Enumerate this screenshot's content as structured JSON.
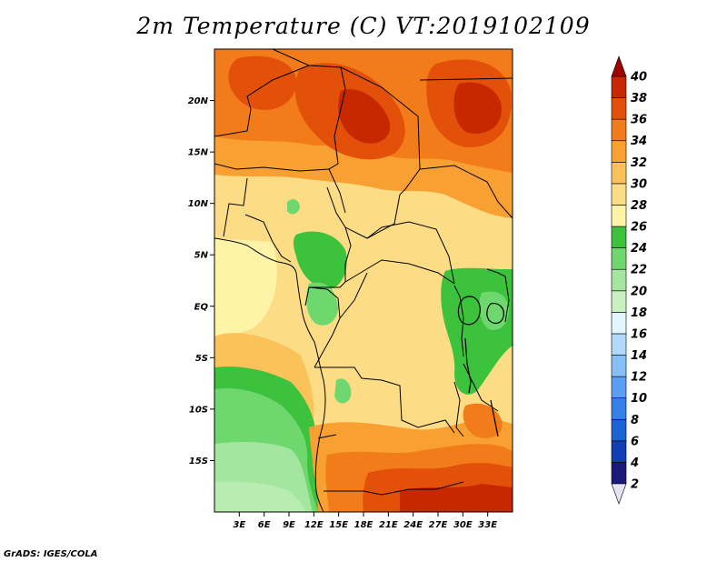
{
  "title": "2m Temperature (C) VT:2019102109",
  "credit": "GrADS: IGES/COLA",
  "map": {
    "lon_range": [
      0,
      36
    ],
    "lat_range": [
      -20,
      25
    ],
    "lat_ticks": [
      {
        "value": 20,
        "label": "20N"
      },
      {
        "value": 15,
        "label": "15N"
      },
      {
        "value": 10,
        "label": "10N"
      },
      {
        "value": 5,
        "label": "5N"
      },
      {
        "value": 0,
        "label": "EQ"
      },
      {
        "value": -5,
        "label": "5S"
      },
      {
        "value": -10,
        "label": "10S"
      },
      {
        "value": -15,
        "label": "15S"
      }
    ],
    "lon_ticks": [
      {
        "value": 3,
        "label": "3E"
      },
      {
        "value": 6,
        "label": "6E"
      },
      {
        "value": 9,
        "label": "9E"
      },
      {
        "value": 12,
        "label": "12E"
      },
      {
        "value": 15,
        "label": "15E"
      },
      {
        "value": 18,
        "label": "18E"
      },
      {
        "value": 21,
        "label": "21E"
      },
      {
        "value": 24,
        "label": "24E"
      },
      {
        "value": 27,
        "label": "27E"
      },
      {
        "value": 30,
        "label": "30E"
      },
      {
        "value": 33,
        "label": "33E"
      }
    ]
  },
  "colorbar": {
    "levels": [
      "2",
      "4",
      "6",
      "8",
      "10",
      "12",
      "14",
      "16",
      "18",
      "20",
      "22",
      "24",
      "26",
      "28",
      "30",
      "32",
      "34",
      "36",
      "38",
      "40"
    ],
    "colors": [
      "#19197a",
      "#0e40b4",
      "#1a64d4",
      "#3280e8",
      "#5c9ef2",
      "#86bef8",
      "#b2d8fc",
      "#e2f6ff",
      "#c8f0c0",
      "#a4e6a0",
      "#6ed86e",
      "#3cc23c",
      "#fff3a8",
      "#fcdc84",
      "#fcc25a",
      "#f8a032",
      "#f27c1a",
      "#e2500a",
      "#c82800",
      "#a80000"
    ],
    "under_color": "#e6e2f4",
    "over_color": "#a00000"
  }
}
